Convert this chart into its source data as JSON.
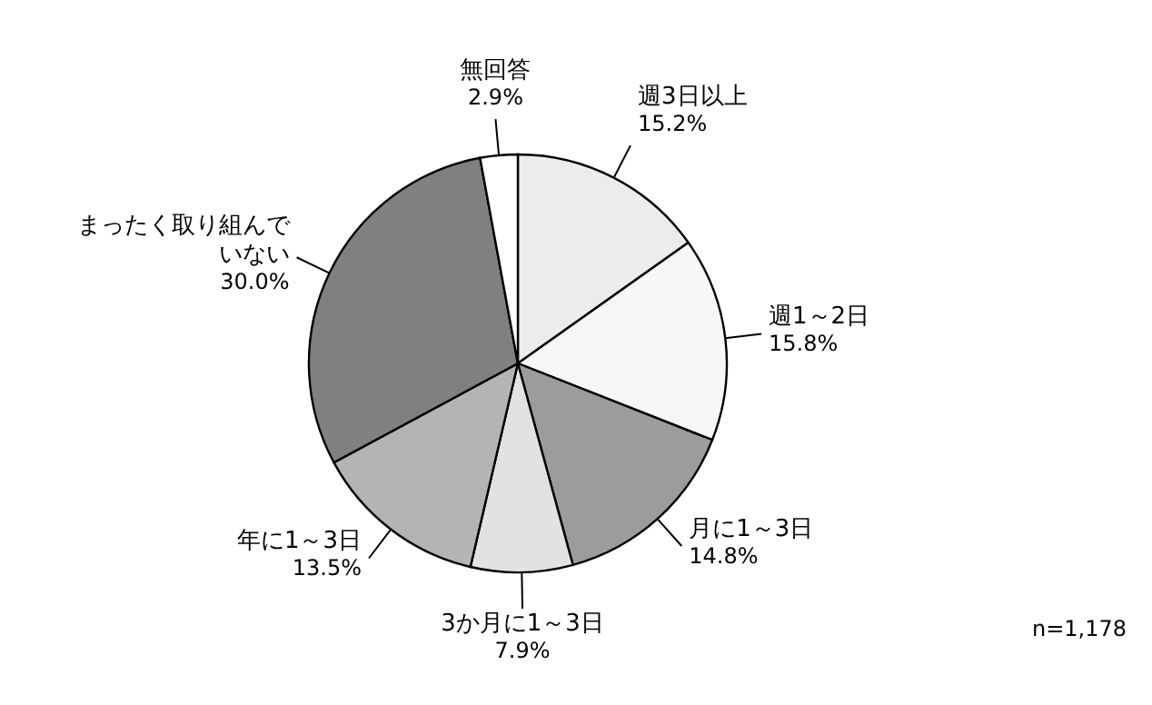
{
  "chart_data": {
    "type": "pie",
    "categories": [
      "週3日以上",
      "週1～2日",
      "月に1～3日",
      "3か月に1～3日",
      "年に1～3日",
      "まったく取り組んでいない",
      "無回答"
    ],
    "values": [
      15.2,
      15.8,
      14.8,
      7.9,
      13.5,
      30.0,
      2.9
    ],
    "colors": [
      "#ececec",
      "#f7f7f7",
      "#9c9c9c",
      "#e2e2e2",
      "#b4b4b4",
      "#808080",
      "#ffffff"
    ],
    "value_labels": [
      "15.2%",
      "15.8%",
      "14.8%",
      "7.9%",
      "13.5%",
      "30.0%",
      "2.9%"
    ],
    "annotations": [
      "n=1,178"
    ]
  }
}
